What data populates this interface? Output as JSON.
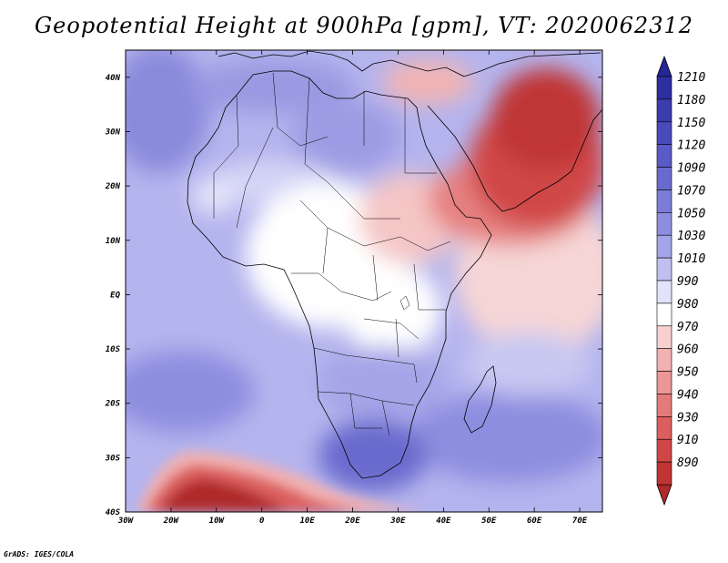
{
  "title": "Geopotential Height at 900hPa [gpm], VT: 2020062312",
  "credit": "GrADS: IGES/COLA",
  "map": {
    "lon_min": -30,
    "lon_max": 75,
    "lat_min": -40,
    "lat_max": 45,
    "lat_ticks": [
      {
        "value": 40,
        "label": "40N"
      },
      {
        "value": 30,
        "label": "30N"
      },
      {
        "value": 20,
        "label": "20N"
      },
      {
        "value": 10,
        "label": "10N"
      },
      {
        "value": 0,
        "label": "EQ"
      },
      {
        "value": -10,
        "label": "10S"
      },
      {
        "value": -20,
        "label": "20S"
      },
      {
        "value": -30,
        "label": "30S"
      },
      {
        "value": -40,
        "label": "40S"
      }
    ],
    "lon_ticks": [
      {
        "value": -30,
        "label": "30W"
      },
      {
        "value": -20,
        "label": "20W"
      },
      {
        "value": -10,
        "label": "10W"
      },
      {
        "value": 0,
        "label": "0"
      },
      {
        "value": 10,
        "label": "10E"
      },
      {
        "value": 20,
        "label": "20E"
      },
      {
        "value": 30,
        "label": "30E"
      },
      {
        "value": 40,
        "label": "40E"
      },
      {
        "value": 50,
        "label": "50E"
      },
      {
        "value": 60,
        "label": "60E"
      },
      {
        "value": 70,
        "label": "70E"
      }
    ]
  },
  "legend": {
    "levels": [
      {
        "label": "1210",
        "color": "#2e2ea0"
      },
      {
        "label": "1180",
        "color": "#3c3cae"
      },
      {
        "label": "1150",
        "color": "#4a4abc"
      },
      {
        "label": "1120",
        "color": "#5a5ac6"
      },
      {
        "label": "1090",
        "color": "#6a6ace"
      },
      {
        "label": "1070",
        "color": "#7c7cd8"
      },
      {
        "label": "1050",
        "color": "#8e8ee0"
      },
      {
        "label": "1030",
        "color": "#a4a4e8"
      },
      {
        "label": "1010",
        "color": "#c0c0f0"
      },
      {
        "label": "990",
        "color": "#e2e2fa"
      },
      {
        "label": "980",
        "color": "#ffffff"
      },
      {
        "label": "970",
        "color": "#f8d0d0"
      },
      {
        "label": "960",
        "color": "#f2b0b0"
      },
      {
        "label": "950",
        "color": "#ec9696"
      },
      {
        "label": "940",
        "color": "#e47a7a"
      },
      {
        "label": "930",
        "color": "#dc5e5e"
      },
      {
        "label": "910",
        "color": "#d04646"
      },
      {
        "label": "890",
        "color": "#c03434"
      }
    ],
    "top_color": "#262696",
    "bottom_color": "#b02a2a"
  }
}
